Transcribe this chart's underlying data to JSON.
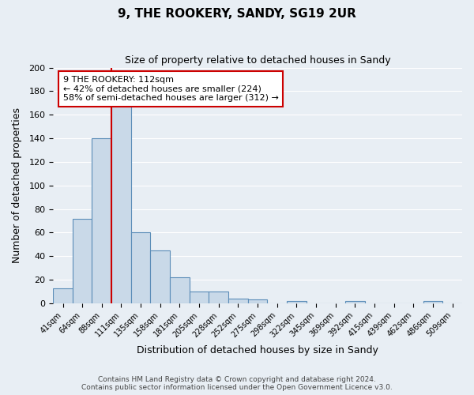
{
  "title": "9, THE ROOKERY, SANDY, SG19 2UR",
  "subtitle": "Size of property relative to detached houses in Sandy",
  "xlabel": "Distribution of detached houses by size in Sandy",
  "ylabel": "Number of detached properties",
  "bar_color": "#c9d9e8",
  "bar_edge_color": "#5b8db8",
  "background_color": "#e8eef4",
  "grid_color": "#ffffff",
  "categories": [
    "41sqm",
    "64sqm",
    "88sqm",
    "111sqm",
    "135sqm",
    "158sqm",
    "181sqm",
    "205sqm",
    "228sqm",
    "252sqm",
    "275sqm",
    "298sqm",
    "322sqm",
    "345sqm",
    "369sqm",
    "392sqm",
    "415sqm",
    "439sqm",
    "462sqm",
    "486sqm",
    "509sqm"
  ],
  "values": [
    13,
    72,
    140,
    168,
    60,
    45,
    22,
    10,
    10,
    4,
    3,
    0,
    2,
    0,
    0,
    2,
    0,
    0,
    0,
    2,
    0
  ],
  "ylim": [
    0,
    200
  ],
  "yticks": [
    0,
    20,
    40,
    60,
    80,
    100,
    120,
    140,
    160,
    180,
    200
  ],
  "property_line_x": 3.0,
  "property_line_color": "#cc0000",
  "annotation_text": "9 THE ROOKERY: 112sqm\n← 42% of detached houses are smaller (224)\n58% of semi-detached houses are larger (312) →",
  "annotation_box_color": "#ffffff",
  "annotation_box_edge_color": "#cc0000",
  "footer_line1": "Contains HM Land Registry data © Crown copyright and database right 2024.",
  "footer_line2": "Contains public sector information licensed under the Open Government Licence v3.0."
}
